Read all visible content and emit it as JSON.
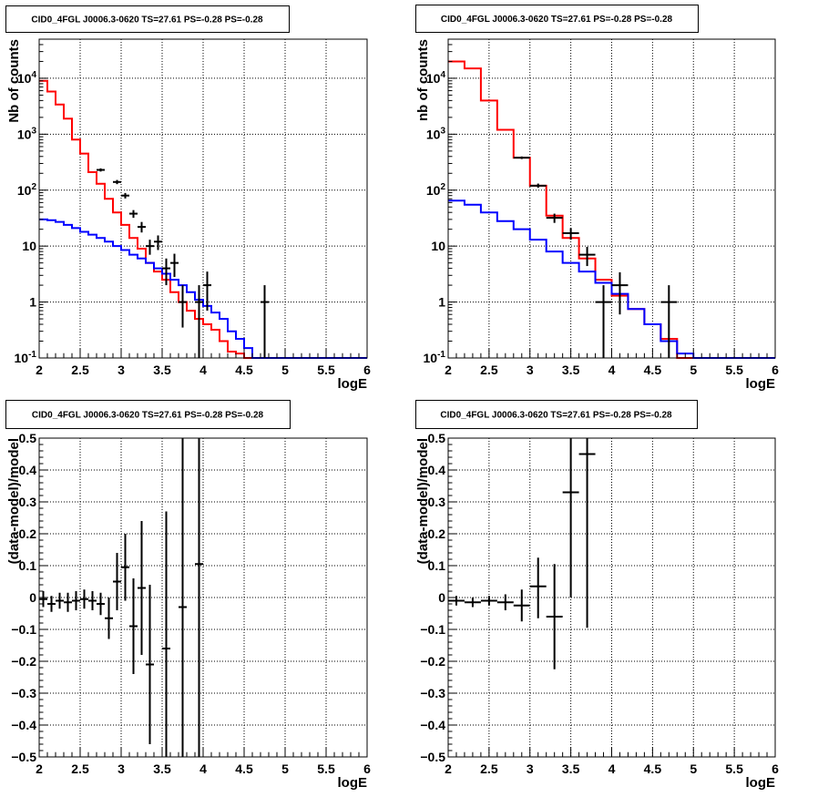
{
  "chart_data": [
    {
      "type": "line",
      "title": "CID0_4FGL J0006.3-0620 TS=27.61 PS=-0.28 PS=-0.28",
      "xlabel": "logE",
      "ylabel": "Nb of counts",
      "xscale": "linear",
      "yscale": "log",
      "xlim": [
        2,
        6
      ],
      "ylim": [
        0.1,
        50000
      ],
      "grid": true,
      "xticks": [
        "2",
        "2.5",
        "3",
        "3.5",
        "4",
        "4.5",
        "5",
        "5.5",
        "6"
      ],
      "yticks": [
        {
          "value": 0.1,
          "label": "10",
          "sup": "-1"
        },
        {
          "value": 1,
          "label": "1",
          "sup": ""
        },
        {
          "value": 10,
          "label": "10",
          "sup": ""
        },
        {
          "value": 100,
          "label": "10",
          "sup": "2"
        },
        {
          "value": 1000,
          "label": "10",
          "sup": "3"
        },
        {
          "value": 10000,
          "label": "10",
          "sup": "4"
        }
      ],
      "bin_edges": [
        2.0,
        2.1,
        2.2,
        2.3,
        2.4,
        2.5,
        2.6,
        2.7,
        2.8,
        2.9,
        3.0,
        3.1,
        3.2,
        3.3,
        3.4,
        3.5,
        3.6,
        3.7,
        3.8,
        3.9,
        4.0,
        4.1,
        4.2,
        4.3,
        4.4,
        4.5,
        4.6,
        4.7,
        4.8,
        4.9,
        5.0,
        5.1,
        5.2,
        5.3,
        5.4,
        5.5,
        5.6,
        5.7,
        5.8,
        5.9,
        6.0
      ],
      "series": [
        {
          "color": "#ff0000",
          "style": "step",
          "values": [
            9000,
            5800,
            3400,
            1900,
            800,
            450,
            210,
            130,
            70,
            40,
            24,
            14,
            9,
            5,
            3.5,
            2.5,
            1.5,
            1.0,
            0.7,
            0.5,
            0.4,
            0.32,
            0.2,
            0.13,
            0.12,
            0.1,
            0.1,
            0.1,
            0.1,
            0.1,
            0.1,
            0.1,
            0.1,
            0.1,
            0.1,
            0.1,
            0.1,
            0.1,
            0.1,
            0.1
          ]
        },
        {
          "color": "#0000ff",
          "style": "step",
          "values": [
            30,
            29,
            27,
            24,
            21,
            18,
            16,
            14,
            12,
            10,
            8.5,
            7,
            6,
            5,
            4,
            3.2,
            2.5,
            2,
            1.5,
            1.1,
            0.85,
            0.65,
            0.5,
            0.3,
            0.22,
            0.15,
            0.1,
            0.1,
            0.1,
            0.1,
            0.1,
            0.1,
            0.1,
            0.1,
            0.1,
            0.1,
            0.1,
            0.1,
            0.1,
            0.1
          ]
        }
      ],
      "data_points": [
        {
          "x": 2.75,
          "y": 230,
          "ylo": 215,
          "yhi": 245
        },
        {
          "x": 2.95,
          "y": 140,
          "ylo": 128,
          "yhi": 152
        },
        {
          "x": 3.05,
          "y": 80,
          "ylo": 71,
          "yhi": 89
        },
        {
          "x": 3.15,
          "y": 38,
          "ylo": 32,
          "yhi": 44
        },
        {
          "x": 3.25,
          "y": 22,
          "ylo": 17.5,
          "yhi": 27
        },
        {
          "x": 3.35,
          "y": 10,
          "ylo": 7,
          "yhi": 13
        },
        {
          "x": 3.45,
          "y": 12,
          "ylo": 8.5,
          "yhi": 15.5
        },
        {
          "x": 3.55,
          "y": 4,
          "ylo": 2,
          "yhi": 6
        },
        {
          "x": 3.65,
          "y": 5,
          "ylo": 2.8,
          "yhi": 7.3
        },
        {
          "x": 3.75,
          "y": 1,
          "ylo": 0.35,
          "yhi": 2
        },
        {
          "x": 3.95,
          "y": 1,
          "ylo": 0.1,
          "yhi": 2
        },
        {
          "x": 4.05,
          "y": 2,
          "ylo": 0.7,
          "yhi": 3.5
        },
        {
          "x": 4.75,
          "y": 1,
          "ylo": 0.1,
          "yhi": 2
        }
      ],
      "xerr": 0.05
    },
    {
      "type": "line",
      "title": "CID0_4FGL J0006.3-0620 TS=27.61 PS=-0.28 PS=-0.28",
      "xlabel": "logE",
      "ylabel": "nb of counts",
      "xscale": "linear",
      "yscale": "log",
      "xlim": [
        2,
        6
      ],
      "ylim": [
        0.1,
        50000
      ],
      "grid": true,
      "xticks": [
        "2",
        "2.5",
        "3",
        "3.5",
        "4",
        "4.5",
        "5",
        "5.5",
        "6"
      ],
      "yticks": [
        {
          "value": 0.1,
          "label": "10",
          "sup": "-1"
        },
        {
          "value": 1,
          "label": "1",
          "sup": ""
        },
        {
          "value": 10,
          "label": "10",
          "sup": ""
        },
        {
          "value": 100,
          "label": "10",
          "sup": "2"
        },
        {
          "value": 1000,
          "label": "10",
          "sup": "3"
        },
        {
          "value": 10000,
          "label": "10",
          "sup": "4"
        }
      ],
      "bin_edges": [
        2.0,
        2.2,
        2.4,
        2.6,
        2.8,
        3.0,
        3.2,
        3.4,
        3.6,
        3.8,
        4.0,
        4.2,
        4.4,
        4.6,
        4.8,
        5.0,
        5.2,
        5.4,
        5.6,
        5.8,
        6.0
      ],
      "series": [
        {
          "color": "#ff0000",
          "style": "step",
          "values": [
            20000,
            15000,
            4000,
            1200,
            380,
            120,
            35,
            14,
            6,
            2.5,
            1.3,
            0.75,
            0.4,
            0.22,
            0.1,
            0.1,
            0.1,
            0.1,
            0.1,
            0.1
          ]
        },
        {
          "color": "#0000ff",
          "style": "step",
          "values": [
            65,
            55,
            40,
            28,
            20,
            13,
            8,
            5,
            3.5,
            2.2,
            1.4,
            0.75,
            0.4,
            0.2,
            0.12,
            0.1,
            0.1,
            0.1,
            0.1,
            0.1
          ]
        }
      ],
      "data_points": [
        {
          "x": 2.9,
          "y": 380,
          "ylo": 360,
          "yhi": 400
        },
        {
          "x": 3.1,
          "y": 120,
          "ylo": 110,
          "yhi": 131
        },
        {
          "x": 3.3,
          "y": 32,
          "ylo": 26,
          "yhi": 38
        },
        {
          "x": 3.5,
          "y": 17,
          "ylo": 13,
          "yhi": 21
        },
        {
          "x": 3.7,
          "y": 7,
          "ylo": 4.4,
          "yhi": 9.7
        },
        {
          "x": 3.9,
          "y": 1,
          "ylo": 0.1,
          "yhi": 2
        },
        {
          "x": 4.1,
          "y": 2,
          "ylo": 0.6,
          "yhi": 3.4
        },
        {
          "x": 4.7,
          "y": 1,
          "ylo": 0.1,
          "yhi": 2
        }
      ],
      "xerr": 0.1
    },
    {
      "type": "scatter",
      "title": "CID0_4FGL J0006.3-0620 TS=27.61 PS=-0.28 PS=-0.28",
      "xlabel": "logE",
      "ylabel": "(data-model)/model",
      "xscale": "linear",
      "yscale": "linear",
      "xlim": [
        2,
        6
      ],
      "ylim": [
        -0.5,
        0.5
      ],
      "grid": true,
      "xticks": [
        "2",
        "2.5",
        "3",
        "3.5",
        "4",
        "4.5",
        "5",
        "5.5",
        "6"
      ],
      "yticks": [
        {
          "value": -0.5,
          "label": "−0.5"
        },
        {
          "value": -0.4,
          "label": "−0.4"
        },
        {
          "value": -0.3,
          "label": "−0.3"
        },
        {
          "value": -0.2,
          "label": "−0.2"
        },
        {
          "value": -0.1,
          "label": "−0.1"
        },
        {
          "value": 0,
          "label": "0"
        },
        {
          "value": 0.1,
          "label": "0.1"
        },
        {
          "value": 0.2,
          "label": "0.2"
        },
        {
          "value": 0.3,
          "label": "0.3"
        },
        {
          "value": 0.4,
          "label": "0.4"
        },
        {
          "value": 0.5,
          "label": "0.5"
        }
      ],
      "data_points": [
        {
          "x": 2.05,
          "y": -0.005,
          "ylo": -0.03,
          "yhi": 0.02
        },
        {
          "x": 2.15,
          "y": -0.02,
          "ylo": -0.045,
          "yhi": 0.005
        },
        {
          "x": 2.25,
          "y": -0.01,
          "ylo": -0.035,
          "yhi": 0.015
        },
        {
          "x": 2.35,
          "y": -0.015,
          "ylo": -0.045,
          "yhi": 0.015
        },
        {
          "x": 2.45,
          "y": -0.01,
          "ylo": -0.04,
          "yhi": 0.02
        },
        {
          "x": 2.55,
          "y": -0.005,
          "ylo": -0.035,
          "yhi": 0.025
        },
        {
          "x": 2.65,
          "y": -0.01,
          "ylo": -0.04,
          "yhi": 0.02
        },
        {
          "x": 2.75,
          "y": -0.02,
          "ylo": -0.055,
          "yhi": 0.015
        },
        {
          "x": 2.85,
          "y": -0.065,
          "ylo": -0.13,
          "yhi": 0.0
        },
        {
          "x": 2.95,
          "y": 0.05,
          "ylo": -0.04,
          "yhi": 0.14
        },
        {
          "x": 3.05,
          "y": 0.095,
          "ylo": -0.01,
          "yhi": 0.2
        },
        {
          "x": 3.15,
          "y": -0.09,
          "ylo": -0.24,
          "yhi": 0.06
        },
        {
          "x": 3.25,
          "y": 0.03,
          "ylo": -0.18,
          "yhi": 0.24
        },
        {
          "x": 3.35,
          "y": -0.21,
          "ylo": -0.46,
          "yhi": 0.04
        },
        {
          "x": 3.55,
          "y": -0.16,
          "ylo": -0.5,
          "yhi": 0.27
        },
        {
          "x": 3.75,
          "y": -0.03,
          "ylo": -0.5,
          "yhi": 0.5
        },
        {
          "x": 3.95,
          "y": 0.105,
          "ylo": -0.5,
          "yhi": 0.5
        }
      ],
      "xerr": 0.05
    },
    {
      "type": "scatter",
      "title": "CID0_4FGL J0006.3-0620 TS=27.61 PS=-0.28 PS=-0.28",
      "xlabel": "logE",
      "ylabel": "(data-model)/model",
      "xscale": "linear",
      "yscale": "linear",
      "xlim": [
        2,
        6
      ],
      "ylim": [
        -0.5,
        0.5
      ],
      "grid": true,
      "xticks": [
        "2",
        "2.5",
        "3",
        "3.5",
        "4",
        "4.5",
        "5",
        "5.5",
        "6"
      ],
      "yticks": [
        {
          "value": -0.5,
          "label": "−0.5"
        },
        {
          "value": -0.4,
          "label": "−0.4"
        },
        {
          "value": -0.3,
          "label": "−0.3"
        },
        {
          "value": -0.2,
          "label": "−0.2"
        },
        {
          "value": -0.1,
          "label": "−0.1"
        },
        {
          "value": 0,
          "label": "0"
        },
        {
          "value": 0.1,
          "label": "0.1"
        },
        {
          "value": 0.2,
          "label": "0.2"
        },
        {
          "value": 0.3,
          "label": "0.3"
        },
        {
          "value": 0.4,
          "label": "0.4"
        },
        {
          "value": 0.5,
          "label": "0.5"
        }
      ],
      "data_points": [
        {
          "x": 2.1,
          "y": -0.01,
          "ylo": -0.025,
          "yhi": 0.005
        },
        {
          "x": 2.3,
          "y": -0.015,
          "ylo": -0.03,
          "yhi": 0.0
        },
        {
          "x": 2.5,
          "y": -0.01,
          "ylo": -0.025,
          "yhi": 0.005
        },
        {
          "x": 2.7,
          "y": -0.015,
          "ylo": -0.04,
          "yhi": 0.01
        },
        {
          "x": 2.9,
          "y": -0.025,
          "ylo": -0.075,
          "yhi": 0.025
        },
        {
          "x": 3.1,
          "y": 0.035,
          "ylo": -0.065,
          "yhi": 0.125
        },
        {
          "x": 3.3,
          "y": -0.06,
          "ylo": -0.225,
          "yhi": 0.105
        },
        {
          "x": 3.5,
          "y": 0.33,
          "ylo": 0.0,
          "yhi": 0.5
        },
        {
          "x": 3.7,
          "y": 0.45,
          "ylo": -0.095,
          "yhi": 0.5
        }
      ],
      "xerr": 0.1
    }
  ]
}
